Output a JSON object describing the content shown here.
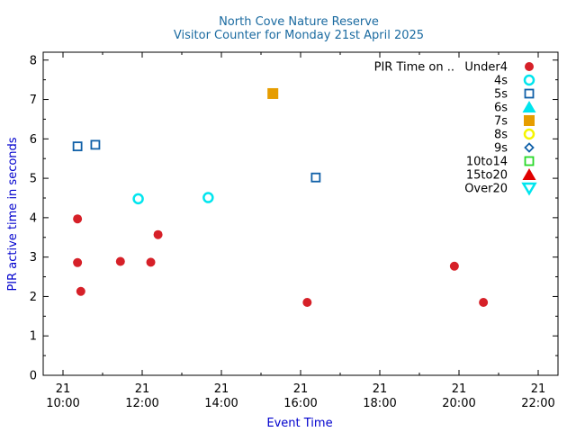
{
  "chart_data": {
    "type": "scatter",
    "title": "North Cove Nature Reserve",
    "subtitle": "Visitor Counter for Monday 21st April 2025",
    "xlabel": "Event Time",
    "ylabel": "PIR active time in seconds",
    "xlim": [
      "2025-04-21T09:30",
      "2025-04-21T22:30"
    ],
    "ylim": [
      0,
      8.2
    ],
    "x_ticks": [
      {
        "time": "2025-04-21T10:00",
        "line1": "21",
        "line2": "10:00"
      },
      {
        "time": "2025-04-21T12:00",
        "line1": "21",
        "line2": "12:00"
      },
      {
        "time": "2025-04-21T14:00",
        "line1": "21",
        "line2": "14:00"
      },
      {
        "time": "2025-04-21T16:00",
        "line1": "21",
        "line2": "16:00"
      },
      {
        "time": "2025-04-21T18:00",
        "line1": "21",
        "line2": "18:00"
      },
      {
        "time": "2025-04-21T20:00",
        "line1": "21",
        "line2": "20:00"
      },
      {
        "time": "2025-04-21T22:00",
        "line1": "21",
        "line2": "22:00"
      }
    ],
    "y_ticks": [
      "0",
      "1",
      "2",
      "3",
      "4",
      "5",
      "6",
      "7",
      "8"
    ],
    "grid": false,
    "legend_position": "top-right",
    "legend_title": "PIR Time on ..",
    "series": [
      {
        "name": "Under4",
        "marker": "circle-filled",
        "color": "#d62028",
        "points": [
          {
            "x": "2025-04-21T10:22",
            "y": 3.97
          },
          {
            "x": "2025-04-21T10:22",
            "y": 2.86
          },
          {
            "x": "2025-04-21T10:27",
            "y": 2.13
          },
          {
            "x": "2025-04-21T11:27",
            "y": 2.89
          },
          {
            "x": "2025-04-21T12:13",
            "y": 2.87
          },
          {
            "x": "2025-04-21T12:24",
            "y": 3.57
          },
          {
            "x": "2025-04-21T16:10",
            "y": 1.85
          },
          {
            "x": "2025-04-21T19:53",
            "y": 2.77
          },
          {
            "x": "2025-04-21T20:37",
            "y": 1.85
          }
        ]
      },
      {
        "name": "4s",
        "marker": "circle-open",
        "color": "#00e5ee",
        "points": [
          {
            "x": "2025-04-21T11:54",
            "y": 4.48
          },
          {
            "x": "2025-04-21T13:40",
            "y": 4.51
          }
        ]
      },
      {
        "name": "5s",
        "marker": "square-open",
        "color": "#1060a8",
        "points": [
          {
            "x": "2025-04-21T10:22",
            "y": 5.81
          },
          {
            "x": "2025-04-21T10:49",
            "y": 5.85
          },
          {
            "x": "2025-04-21T16:23",
            "y": 5.02
          }
        ]
      },
      {
        "name": "6s",
        "marker": "triangle-filled",
        "color": "#00e5ee",
        "points": []
      },
      {
        "name": "7s",
        "marker": "square-filled",
        "color": "#e69d00",
        "points": [
          {
            "x": "2025-04-21T15:18",
            "y": 7.15
          }
        ]
      },
      {
        "name": "8s",
        "marker": "circle-open",
        "color": "#f5f500",
        "points": []
      },
      {
        "name": "9s",
        "marker": "diamond-open",
        "color": "#1060a8",
        "points": []
      },
      {
        "name": "10to14",
        "marker": "square-open",
        "color": "#28d828",
        "points": []
      },
      {
        "name": "15to20",
        "marker": "triangle-filled",
        "color": "#e00000",
        "points": []
      },
      {
        "name": "Over20",
        "marker": "triangle-down-open",
        "color": "#00e5ee",
        "points": []
      }
    ]
  }
}
